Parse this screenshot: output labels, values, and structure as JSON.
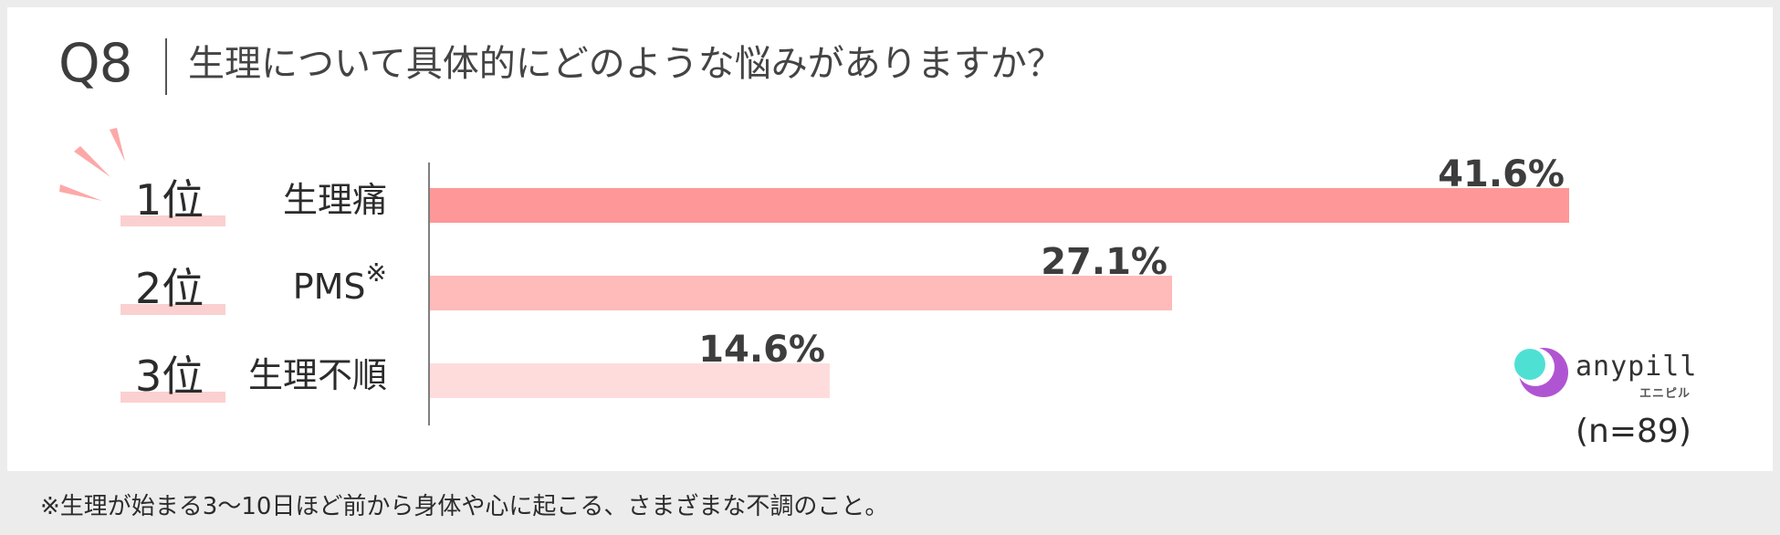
{
  "question": {
    "number": "Q8",
    "text": "生理について具体的にどのような悩みがありますか？"
  },
  "colors": {
    "bar_1": "#fe9898",
    "bar_2": "#ffbaba",
    "bar_3": "#ffdcdc",
    "rank_highlight": "#fbd0d0",
    "burst": "#fda8a8",
    "axis": "#555555"
  },
  "chart_data": {
    "type": "bar",
    "orientation": "horizontal",
    "ranks": [
      "1位",
      "2位",
      "3位"
    ],
    "categories": [
      "生理痛",
      "PMS",
      "生理不順"
    ],
    "category_note_mark": "※",
    "values": [
      41.6,
      27.1,
      14.6
    ],
    "value_labels": [
      "41.6%",
      "27.1%",
      "14.6%"
    ],
    "unit": "%",
    "xlim": [
      0,
      50
    ]
  },
  "brand": {
    "name": "anypill",
    "subtitle": "エニピル",
    "icon": "anypill-logo-icon"
  },
  "sample_size": "(n=89)",
  "footnote": "※生理が始まる3～10日ほど前から身体や心に起こる、さまざまな不調のこと。"
}
